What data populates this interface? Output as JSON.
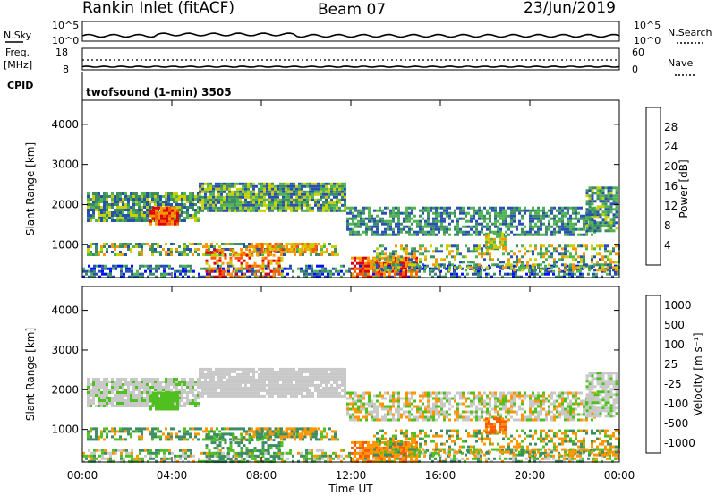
{
  "header": {
    "station": "Rankin Inlet (fitACF)",
    "beam": "Beam 07",
    "date": "23/Jun/2019"
  },
  "noise_panel": {
    "left_label": "N.Sky",
    "right_label": "N.Search",
    "left_ticks": [
      "10^5",
      "10^0"
    ],
    "right_ticks": [
      "10^5",
      "10^0"
    ]
  },
  "freq_panel": {
    "left_label_1": "Freq.",
    "left_label_2": "[MHz]",
    "right_label": "Nave",
    "left_ticks": [
      "18",
      "8"
    ],
    "right_ticks": [
      "60",
      "0"
    ]
  },
  "cpid": {
    "label": "CPID",
    "program": "twofsound (1-min) 3505"
  },
  "colors": {
    "power": [
      "#0010ff",
      "#2850b0",
      "#3c8c64",
      "#50b450",
      "#c8d000",
      "#ff9600",
      "#ff5a00",
      "#e00000"
    ],
    "velocity": [
      "#e00000",
      "#ff5a00",
      "#ff9600",
      "#c8c8c8",
      "#50c020",
      "#3c8c64",
      "#2850b0",
      "#0010ff"
    ]
  },
  "chart_data": [
    {
      "type": "heatmap",
      "name": "power",
      "ylabel": "Slant Range [km]",
      "ylim": [
        180,
        4600
      ],
      "yticks": [
        1000,
        2000,
        3000,
        4000
      ],
      "xlim_hours": [
        0,
        24
      ],
      "colorbar": {
        "label": "Power [dB]",
        "ticks": [
          4,
          8,
          12,
          16,
          20,
          24,
          28
        ],
        "range": [
          0,
          32
        ]
      }
    },
    {
      "type": "heatmap",
      "name": "velocity",
      "ylabel": "Slant Range [km]",
      "ylim": [
        180,
        4600
      ],
      "yticks": [
        1000,
        2000,
        3000,
        4000
      ],
      "xlim_hours": [
        0,
        24
      ],
      "colorbar": {
        "label": "Velocity [m s⁻¹]",
        "ticks": [
          -1000,
          -500,
          -100,
          -25,
          25,
          100,
          500,
          1000
        ]
      }
    }
  ],
  "x_axis": {
    "label": "Time UT",
    "ticks": [
      "00:00",
      "04:00",
      "08:00",
      "12:00",
      "16:00",
      "20:00",
      "00:00"
    ]
  }
}
